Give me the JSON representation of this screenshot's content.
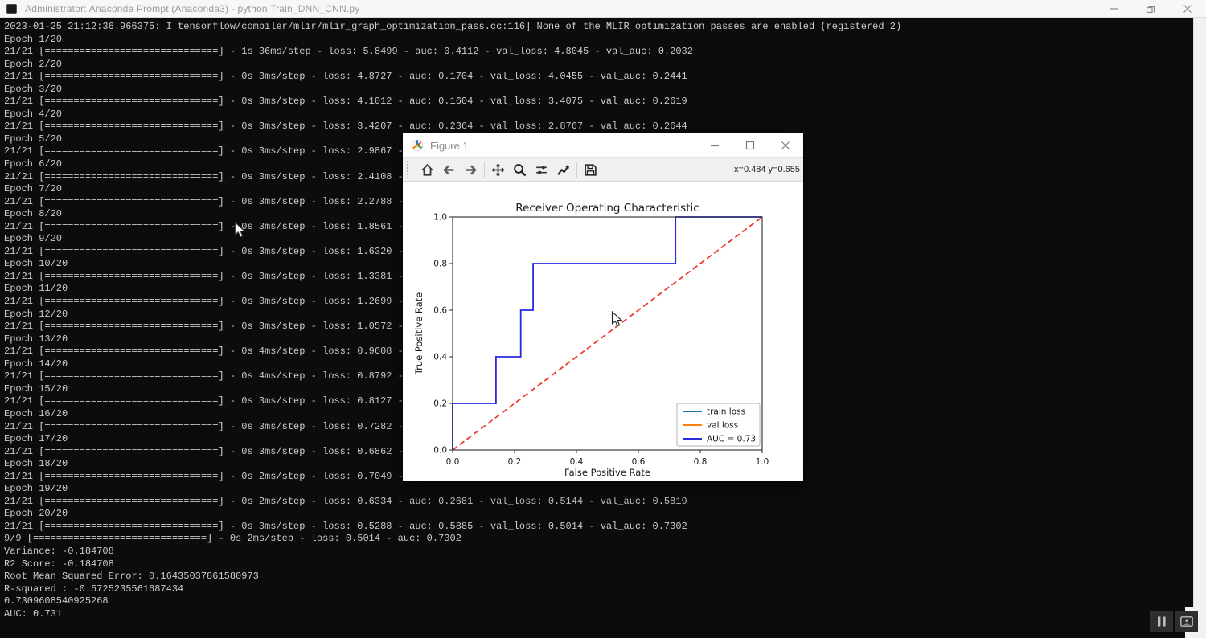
{
  "console_window": {
    "title": "Administrator: Anaconda Prompt (Anaconda3) -  python  Train_DNN_CNN.py",
    "window_controls": [
      "minimize",
      "restore",
      "close"
    ],
    "lines": [
      "2023-01-25 21:12:36.966375: I tensorflow/compiler/mlir/mlir_graph_optimization_pass.cc:116] None of the MLIR optimization passes are enabled (registered 2)",
      "Epoch 1/20",
      "21/21 [==============================] - 1s 36ms/step - loss: 5.8499 - auc: 0.4112 - val_loss: 4.8045 - val_auc: 0.2032",
      "Epoch 2/20",
      "21/21 [==============================] - 0s 3ms/step - loss: 4.8727 - auc: 0.1704 - val_loss: 4.0455 - val_auc: 0.2441",
      "Epoch 3/20",
      "21/21 [==============================] - 0s 3ms/step - loss: 4.1012 - auc: 0.1604 - val_loss: 3.4075 - val_auc: 0.2619",
      "Epoch 4/20",
      "21/21 [==============================] - 0s 3ms/step - loss: 3.4207 - auc: 0.2364 - val_loss: 2.8767 - val_auc: 0.2644",
      "Epoch 5/20",
      "21/21 [==============================] - 0s 3ms/step - loss: 2.9867 - a",
      "Epoch 6/20",
      "21/21 [==============================] - 0s 3ms/step - loss: 2.4108 - a",
      "Epoch 7/20",
      "21/21 [==============================] - 0s 3ms/step - loss: 2.2788 - a",
      "Epoch 8/20",
      "21/21 [==============================] - 0s 3ms/step - loss: 1.8561 - a",
      "Epoch 9/20",
      "21/21 [==============================] - 0s 3ms/step - loss: 1.6320 - a",
      "Epoch 10/20",
      "21/21 [==============================] - 0s 3ms/step - loss: 1.3381 - a",
      "Epoch 11/20",
      "21/21 [==============================] - 0s 3ms/step - loss: 1.2699 - a",
      "Epoch 12/20",
      "21/21 [==============================] - 0s 3ms/step - loss: 1.0572 - a",
      "Epoch 13/20",
      "21/21 [==============================] - 0s 4ms/step - loss: 0.9608 - a",
      "Epoch 14/20",
      "21/21 [==============================] - 0s 4ms/step - loss: 0.8792 - a",
      "Epoch 15/20",
      "21/21 [==============================] - 0s 3ms/step - loss: 0.8127 - a",
      "Epoch 16/20",
      "21/21 [==============================] - 0s 3ms/step - loss: 0.7282 - a",
      "Epoch 17/20",
      "21/21 [==============================] - 0s 3ms/step - loss: 0.6862 - a",
      "Epoch 18/20",
      "21/21 [==============================] - 0s 2ms/step - loss: 0.7049 - a",
      "Epoch 19/20",
      "21/21 [==============================] - 0s 2ms/step - loss: 0.6334 - auc: 0.2681 - val_loss: 0.5144 - val_auc: 0.5819",
      "Epoch 20/20",
      "21/21 [==============================] - 0s 3ms/step - loss: 0.5288 - auc: 0.5885 - val_loss: 0.5014 - val_auc: 0.7302",
      "9/9 [==============================] - 0s 2ms/step - loss: 0.5014 - auc: 0.7302",
      "Variance: -0.184708",
      "R2 Score: -0.184708",
      "Root Mean Squared Error: 0.16435037861580973",
      "R-squared : -0.5725235561687434",
      "0.7309608540925268",
      "AUC: 0.731"
    ]
  },
  "figure_window": {
    "title": "Figure 1",
    "window_controls": [
      "minimize",
      "maximize",
      "close"
    ],
    "toolbar": {
      "buttons": [
        "home",
        "back",
        "forward",
        "pan",
        "zoom-to-rect",
        "configure-subplots",
        "edit-axes",
        "save"
      ],
      "status": "x=0.484 y=0.655"
    }
  },
  "overlay_controls": {
    "buttons": [
      "pause",
      "picture-in-picture"
    ]
  },
  "chart_data": {
    "type": "line",
    "title": "Receiver Operating Characteristic",
    "xlabel": "False Positive Rate",
    "ylabel": "True Positive Rate",
    "xlim": [
      0.0,
      1.0
    ],
    "ylim": [
      0.0,
      1.0
    ],
    "xticks": [
      0.0,
      0.2,
      0.4,
      0.6,
      0.8,
      1.0
    ],
    "yticks": [
      0.0,
      0.2,
      0.4,
      0.6,
      0.8,
      1.0
    ],
    "grid": false,
    "legend_position": "lower right",
    "series": [
      {
        "name": "chance-diagonal",
        "color": "#ee3b2e",
        "style": "dashed",
        "points": [
          [
            0.0,
            0.0
          ],
          [
            1.0,
            1.0
          ]
        ]
      },
      {
        "name": "ROC curve",
        "color": "#2a2ae0",
        "style": "solid",
        "points": [
          [
            0.0,
            0.0
          ],
          [
            0.0,
            0.2
          ],
          [
            0.14,
            0.2
          ],
          [
            0.14,
            0.4
          ],
          [
            0.22,
            0.4
          ],
          [
            0.22,
            0.6
          ],
          [
            0.26,
            0.6
          ],
          [
            0.26,
            0.8
          ],
          [
            0.72,
            0.8
          ],
          [
            0.72,
            1.0
          ],
          [
            1.0,
            1.0
          ]
        ]
      }
    ],
    "legend": [
      {
        "label": "train loss",
        "color": "#1f77b4"
      },
      {
        "label": "val loss",
        "color": "#ff7f0e"
      },
      {
        "label": "AUC = 0.73",
        "color": "#2a2ae0"
      }
    ],
    "auc_value": 0.73
  }
}
